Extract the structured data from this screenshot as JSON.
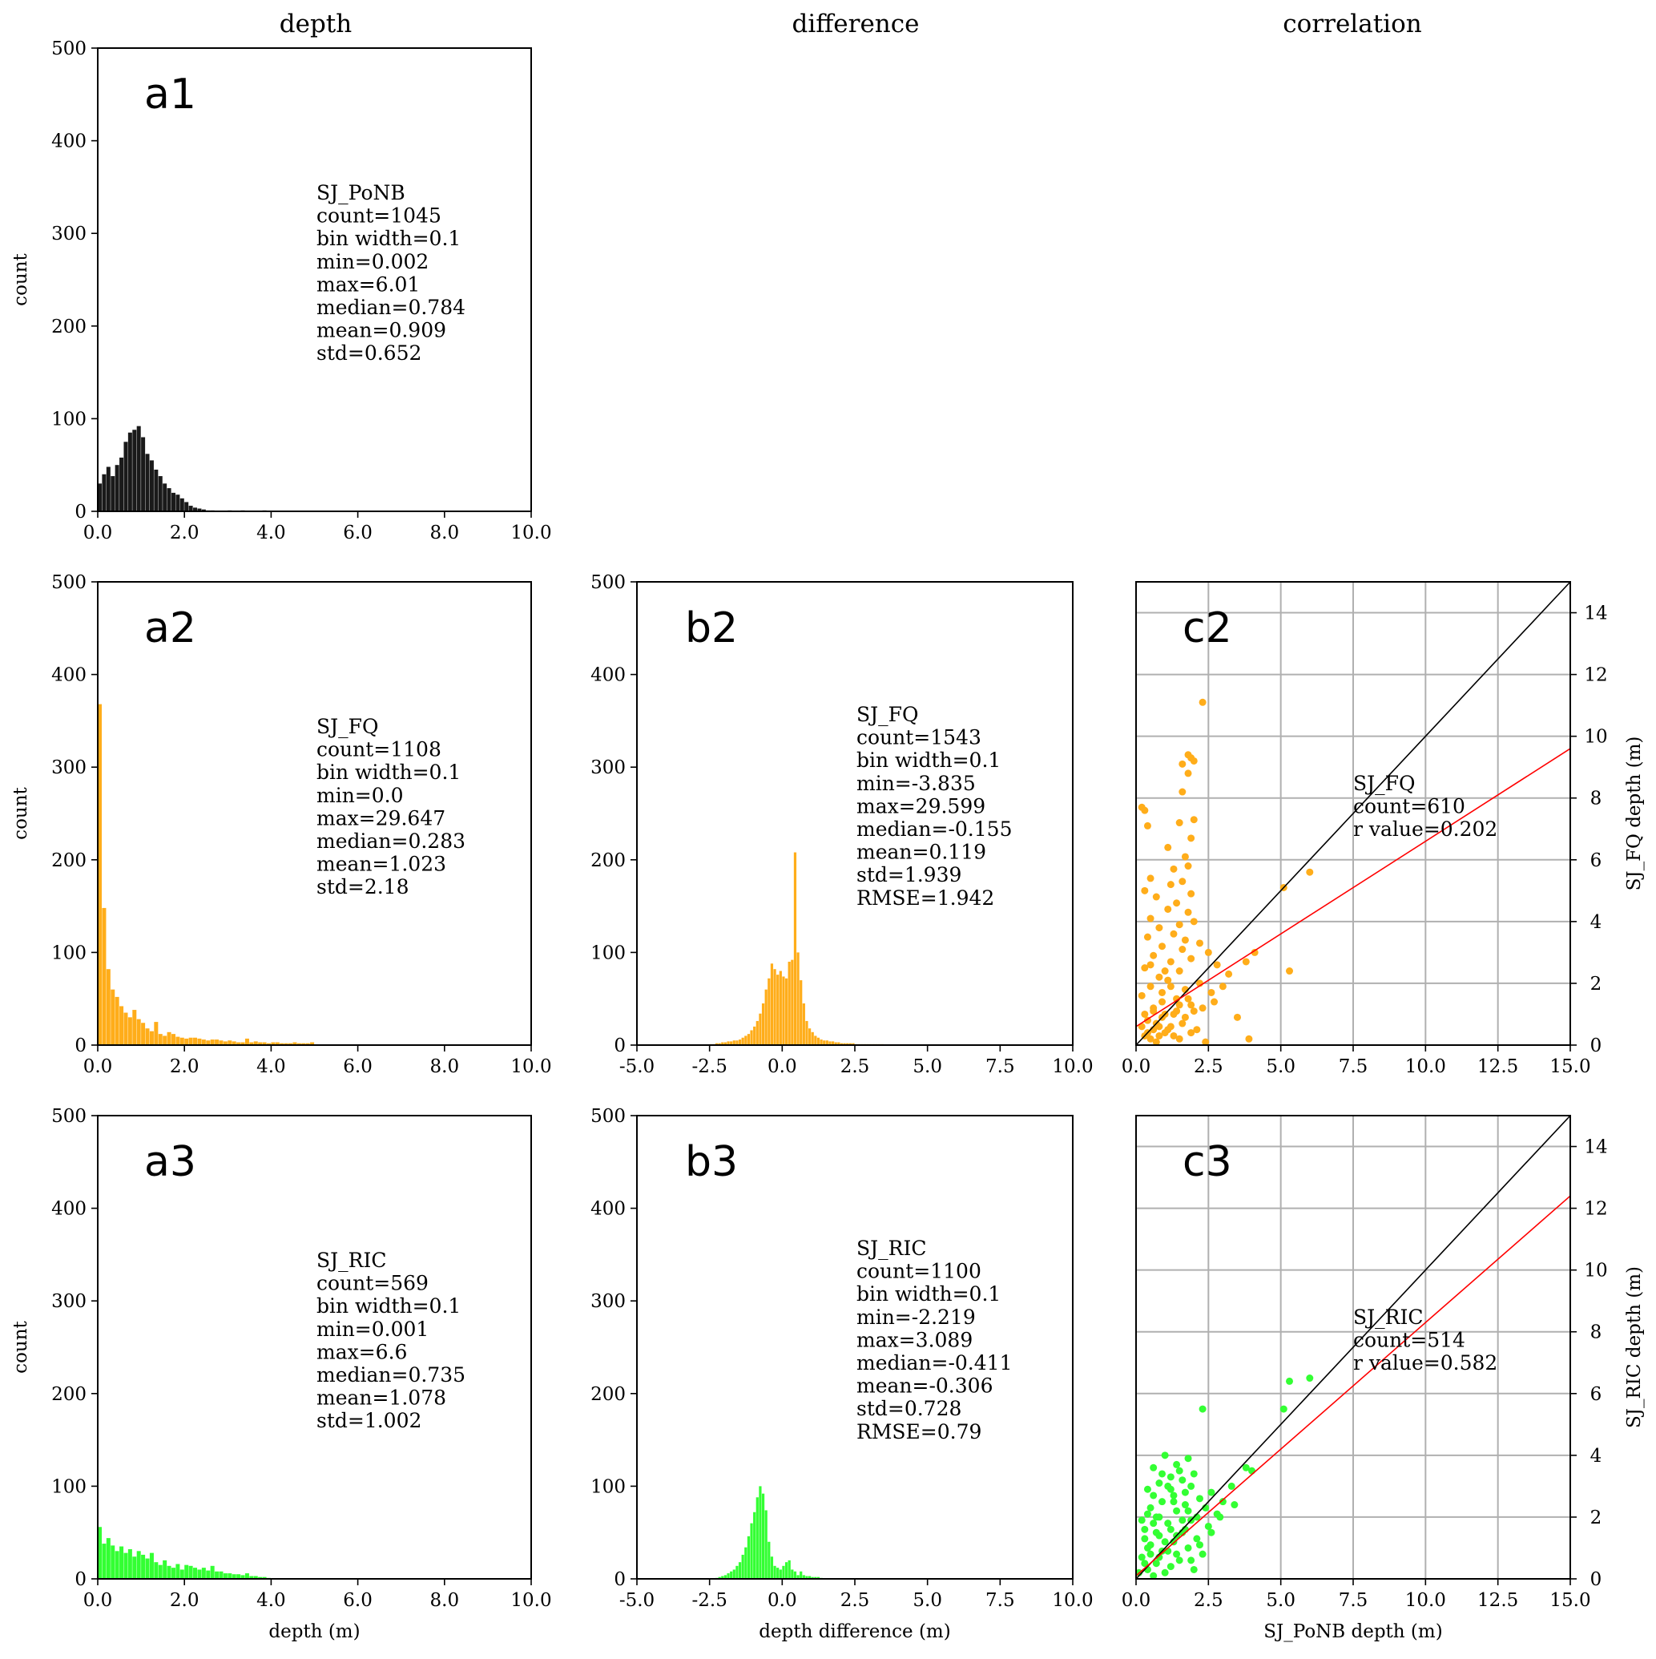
{
  "column_titles": [
    "depth",
    "difference",
    "correlation"
  ],
  "colors": {
    "black": "#1a1a1a",
    "orange": "#ffad1a",
    "green": "#33ff33",
    "red": "#ff0000"
  },
  "chart_data": [
    {
      "id": "a1",
      "type": "bar",
      "panel_label": "a1",
      "color": "#1a1a1a",
      "xlim": [
        0,
        10
      ],
      "ylim": [
        0,
        500
      ],
      "xticks": [
        "0.0",
        "2.0",
        "4.0",
        "6.0",
        "8.0",
        "10.0"
      ],
      "yticks": [
        "0",
        "100",
        "200",
        "300",
        "400",
        "500"
      ],
      "xlabel": "",
      "ylabel": "count",
      "bin_width": 0.1,
      "bin_start": 0,
      "values": [
        30,
        40,
        48,
        38,
        50,
        58,
        75,
        85,
        88,
        92,
        80,
        62,
        55,
        45,
        38,
        30,
        25,
        20,
        18,
        14,
        10,
        6,
        4,
        3,
        2,
        1,
        1,
        0,
        0,
        0,
        1,
        0,
        0,
        1,
        0,
        0,
        0,
        0,
        1
      ],
      "stats": [
        "SJ_PoNB",
        "count=1045",
        "bin width=0.1",
        "min=0.002",
        "max=6.01",
        "median=0.784",
        "mean=0.909",
        "std=0.652"
      ]
    },
    {
      "id": "a2",
      "type": "bar",
      "panel_label": "a2",
      "color": "#ffad1a",
      "xlim": [
        0,
        10
      ],
      "ylim": [
        0,
        500
      ],
      "xticks": [
        "0.0",
        "2.0",
        "4.0",
        "6.0",
        "8.0",
        "10.0"
      ],
      "yticks": [
        "0",
        "100",
        "200",
        "300",
        "400",
        "500"
      ],
      "xlabel": "",
      "ylabel": "count",
      "bin_width": 0.1,
      "bin_start": 0,
      "values": [
        368,
        148,
        82,
        60,
        52,
        42,
        35,
        30,
        38,
        28,
        24,
        18,
        15,
        25,
        12,
        10,
        14,
        12,
        9,
        8,
        7,
        8,
        8,
        7,
        6,
        5,
        6,
        6,
        5,
        4,
        5,
        4,
        3,
        3,
        7,
        3,
        4,
        3,
        3,
        2,
        3,
        3,
        2,
        2,
        2,
        3,
        2,
        2,
        2,
        3
      ],
      "stats": [
        "SJ_FQ",
        "count=1108",
        "bin width=0.1",
        "min=0.0",
        "max=29.647",
        "median=0.283",
        "mean=1.023",
        "std=2.18"
      ]
    },
    {
      "id": "b2",
      "type": "bar",
      "panel_label": "b2",
      "color": "#ffad1a",
      "xlim": [
        -5,
        10
      ],
      "ylim": [
        0,
        500
      ],
      "xticks": [
        "-5.0",
        "-2.5",
        "0.0",
        "2.5",
        "5.0",
        "7.5",
        "10.0"
      ],
      "yticks": [
        "0",
        "100",
        "200",
        "300",
        "400",
        "500"
      ],
      "xlabel": "",
      "ylabel": "",
      "bin_width": 0.1,
      "bin_start": -2.5,
      "values": [
        1,
        1,
        2,
        2,
        3,
        3,
        4,
        4,
        5,
        5,
        6,
        8,
        10,
        12,
        16,
        20,
        26,
        34,
        45,
        60,
        72,
        88,
        82,
        76,
        80,
        74,
        72,
        90,
        92,
        208,
        100,
        70,
        45,
        26,
        18,
        14,
        10,
        8,
        6,
        5,
        5,
        4,
        4,
        3,
        3,
        2,
        2,
        2,
        2,
        2,
        1,
        1,
        1,
        1,
        1,
        1,
        1,
        1,
        1,
        1
      ],
      "stats": [
        "SJ_FQ",
        "count=1543",
        "bin width=0.1",
        "min=-3.835",
        "max=29.599",
        "median=-0.155",
        "mean=0.119",
        "std=1.939",
        "RMSE=1.942"
      ]
    },
    {
      "id": "a3",
      "type": "bar",
      "panel_label": "a3",
      "color": "#33ff33",
      "xlim": [
        0,
        10
      ],
      "ylim": [
        0,
        500
      ],
      "xticks": [
        "0.0",
        "2.0",
        "4.0",
        "6.0",
        "8.0",
        "10.0"
      ],
      "yticks": [
        "0",
        "100",
        "200",
        "300",
        "400",
        "500"
      ],
      "xlabel": "depth (m)",
      "ylabel": "count",
      "bin_width": 0.1,
      "bin_start": 0,
      "values": [
        56,
        38,
        44,
        36,
        30,
        35,
        28,
        32,
        24,
        30,
        26,
        22,
        28,
        18,
        15,
        20,
        14,
        12,
        16,
        10,
        15,
        14,
        12,
        10,
        12,
        9,
        14,
        8,
        8,
        6,
        6,
        5,
        5,
        4,
        6,
        3,
        3,
        2,
        2,
        1
      ],
      "stats": [
        "SJ_RIC",
        "count=569",
        "bin width=0.1",
        "min=0.001",
        "max=6.6",
        "median=0.735",
        "mean=1.078",
        "std=1.002"
      ]
    },
    {
      "id": "b3",
      "type": "bar",
      "panel_label": "b3",
      "color": "#33ff33",
      "xlim": [
        -5,
        10
      ],
      "ylim": [
        0,
        500
      ],
      "xticks": [
        "-5.0",
        "-2.5",
        "0.0",
        "2.5",
        "5.0",
        "7.5",
        "10.0"
      ],
      "yticks": [
        "0",
        "100",
        "200",
        "300",
        "400",
        "500"
      ],
      "xlabel": "depth difference (m)",
      "ylabel": "",
      "bin_width": 0.1,
      "bin_start": -2.3,
      "values": [
        1,
        2,
        3,
        4,
        6,
        8,
        10,
        14,
        18,
        26,
        34,
        46,
        60,
        72,
        88,
        100,
        92,
        74,
        40,
        24,
        14,
        12,
        10,
        14,
        18,
        20,
        10,
        8,
        4,
        8,
        4,
        3,
        3,
        2,
        2,
        2,
        1
      ],
      "stats": [
        "SJ_RIC",
        "count=1100",
        "bin width=0.1",
        "min=-2.219",
        "max=3.089",
        "median=-0.411",
        "mean=-0.306",
        "std=0.728",
        "RMSE=0.79"
      ]
    },
    {
      "id": "c2",
      "type": "scatter",
      "panel_label": "c2",
      "color": "#ffad1a",
      "xlim": [
        0,
        15
      ],
      "ylim": [
        0,
        15
      ],
      "xticks": [
        "0.0",
        "2.5",
        "5.0",
        "7.5",
        "10.0",
        "12.5",
        "15.0"
      ],
      "yticks": [
        "0",
        "2",
        "4",
        "6",
        "8",
        "10",
        "12",
        "14"
      ],
      "xlabel": "",
      "ylabel": "SJ_FQ depth (m)",
      "fit": {
        "slope": 0.6,
        "intercept": 0.6
      },
      "points": [
        [
          2.3,
          11.1
        ],
        [
          1.8,
          9.4
        ],
        [
          1.9,
          9.3
        ],
        [
          1.6,
          9.1
        ],
        [
          1.8,
          8.8
        ],
        [
          2.0,
          9.2
        ],
        [
          0.2,
          7.7
        ],
        [
          0.3,
          7.6
        ],
        [
          1.6,
          8.2
        ],
        [
          2.0,
          7.3
        ],
        [
          1.5,
          7.2
        ],
        [
          0.4,
          7.1
        ],
        [
          1.9,
          6.7
        ],
        [
          1.1,
          6.4
        ],
        [
          1.7,
          6.1
        ],
        [
          1.8,
          5.8
        ],
        [
          1.3,
          5.7
        ],
        [
          0.5,
          5.4
        ],
        [
          1.6,
          5.3
        ],
        [
          1.2,
          5.2
        ],
        [
          0.3,
          5.0
        ],
        [
          1.9,
          4.9
        ],
        [
          0.7,
          4.8
        ],
        [
          1.4,
          4.6
        ],
        [
          1.1,
          4.4
        ],
        [
          1.8,
          4.3
        ],
        [
          0.5,
          4.1
        ],
        [
          2.0,
          4.0
        ],
        [
          1.5,
          3.9
        ],
        [
          0.8,
          3.8
        ],
        [
          1.3,
          3.6
        ],
        [
          0.4,
          3.5
        ],
        [
          1.7,
          3.4
        ],
        [
          2.2,
          3.3
        ],
        [
          0.9,
          3.2
        ],
        [
          1.6,
          3.1
        ],
        [
          2.5,
          3.0
        ],
        [
          0.6,
          2.9
        ],
        [
          1.9,
          2.8
        ],
        [
          1.2,
          2.7
        ],
        [
          2.8,
          2.6
        ],
        [
          0.3,
          2.5
        ],
        [
          1.5,
          2.4
        ],
        [
          3.2,
          2.3
        ],
        [
          0.8,
          2.2
        ],
        [
          1.1,
          2.1
        ],
        [
          2.2,
          2.0
        ],
        [
          0.5,
          1.9
        ],
        [
          1.7,
          1.8
        ],
        [
          2.6,
          1.7
        ],
        [
          0.2,
          1.6
        ],
        [
          1.4,
          1.5
        ],
        [
          0.9,
          1.4
        ],
        [
          1.9,
          1.3
        ],
        [
          2.3,
          1.2
        ],
        [
          0.6,
          1.1
        ],
        [
          1.3,
          1.0
        ],
        [
          3.5,
          0.9
        ],
        [
          0.4,
          0.8
        ],
        [
          1.6,
          0.7
        ],
        [
          0.8,
          0.6
        ],
        [
          2.1,
          0.5
        ],
        [
          1.0,
          0.4
        ],
        [
          0.3,
          0.3
        ],
        [
          1.5,
          0.2
        ],
        [
          0.7,
          0.1
        ],
        [
          2.4,
          0.1
        ],
        [
          3.9,
          0.2
        ],
        [
          5.1,
          5.1
        ],
        [
          6.0,
          5.6
        ],
        [
          5.3,
          2.4
        ],
        [
          3.8,
          2.7
        ],
        [
          4.1,
          3.0
        ],
        [
          0.6,
          1.2
        ],
        [
          0.9,
          0.9
        ],
        [
          1.2,
          0.6
        ],
        [
          0.4,
          0.4
        ],
        [
          0.7,
          0.7
        ],
        [
          1.0,
          1.0
        ],
        [
          1.4,
          1.1
        ],
        [
          0.5,
          0.2
        ],
        [
          0.8,
          0.3
        ],
        [
          1.1,
          0.5
        ],
        [
          0.2,
          0.6
        ],
        [
          1.3,
          0.3
        ],
        [
          1.7,
          0.9
        ],
        [
          0.6,
          0.5
        ],
        [
          1.8,
          1.5
        ],
        [
          2.0,
          1.1
        ],
        [
          0.3,
          1.0
        ],
        [
          1.5,
          1.3
        ],
        [
          1.9,
          0.4
        ],
        [
          0.9,
          1.7
        ],
        [
          1.2,
          1.9
        ],
        [
          2.7,
          1.4
        ],
        [
          3.0,
          1.9
        ],
        [
          0.5,
          2.6
        ],
        [
          1.0,
          2.4
        ]
      ],
      "stats": [
        "SJ_FQ",
        "count=610",
        "r value=0.202"
      ]
    },
    {
      "id": "c3",
      "type": "scatter",
      "panel_label": "c3",
      "color": "#33ff33",
      "xlim": [
        0,
        15
      ],
      "ylim": [
        0,
        15
      ],
      "xticks": [
        "0.0",
        "2.5",
        "5.0",
        "7.5",
        "10.0",
        "12.5",
        "15.0"
      ],
      "yticks": [
        "0",
        "2",
        "4",
        "6",
        "8",
        "10",
        "12",
        "14"
      ],
      "xlabel": "SJ_PoNB depth (m)",
      "ylabel": "SJ_RIC depth (m)",
      "fit": {
        "slope": 0.82,
        "intercept": 0.1
      },
      "points": [
        [
          5.3,
          6.4
        ],
        [
          6.0,
          6.5
        ],
        [
          2.3,
          5.5
        ],
        [
          5.1,
          5.5
        ],
        [
          1.0,
          4.0
        ],
        [
          1.8,
          3.9
        ],
        [
          4.0,
          3.5
        ],
        [
          3.8,
          3.6
        ],
        [
          1.4,
          3.7
        ],
        [
          0.6,
          3.6
        ],
        [
          2.0,
          3.4
        ],
        [
          1.2,
          3.3
        ],
        [
          3.3,
          3.0
        ],
        [
          1.6,
          3.2
        ],
        [
          0.8,
          3.1
        ],
        [
          2.6,
          2.8
        ],
        [
          1.9,
          3.0
        ],
        [
          0.4,
          2.9
        ],
        [
          1.3,
          2.7
        ],
        [
          2.2,
          2.6
        ],
        [
          0.9,
          2.5
        ],
        [
          3.0,
          2.5
        ],
        [
          1.7,
          2.4
        ],
        [
          0.5,
          2.3
        ],
        [
          1.4,
          2.2
        ],
        [
          2.8,
          2.1
        ],
        [
          0.7,
          2.0
        ],
        [
          1.9,
          1.9
        ],
        [
          1.1,
          1.8
        ],
        [
          2.5,
          1.7
        ],
        [
          0.3,
          1.6
        ],
        [
          1.6,
          1.5
        ],
        [
          0.8,
          1.4
        ],
        [
          2.1,
          1.3
        ],
        [
          1.3,
          1.2
        ],
        [
          0.5,
          1.1
        ],
        [
          1.8,
          1.0
        ],
        [
          0.9,
          0.9
        ],
        [
          2.3,
          0.8
        ],
        [
          0.2,
          0.7
        ],
        [
          1.5,
          0.6
        ],
        [
          0.7,
          0.5
        ],
        [
          1.2,
          0.4
        ],
        [
          0.4,
          0.3
        ],
        [
          1.0,
          0.2
        ],
        [
          0.6,
          0.1
        ],
        [
          2.0,
          0.3
        ],
        [
          1.4,
          0.8
        ],
        [
          0.3,
          1.3
        ],
        [
          1.7,
          2.8
        ],
        [
          2.4,
          2.3
        ],
        [
          0.6,
          2.7
        ],
        [
          1.1,
          3.0
        ],
        [
          1.5,
          3.5
        ],
        [
          0.8,
          2.0
        ],
        [
          0.2,
          1.9
        ],
        [
          2.6,
          1.5
        ],
        [
          1.9,
          0.6
        ],
        [
          1.2,
          1.6
        ],
        [
          0.5,
          0.8
        ],
        [
          2.9,
          2.0
        ],
        [
          3.4,
          2.4
        ],
        [
          1.0,
          1.2
        ],
        [
          0.7,
          1.5
        ],
        [
          1.6,
          1.9
        ],
        [
          2.2,
          1.1
        ],
        [
          0.4,
          2.1
        ],
        [
          1.3,
          2.5
        ],
        [
          1.8,
          2.2
        ],
        [
          0.9,
          3.4
        ],
        [
          0.3,
          0.5
        ],
        [
          0.1,
          0.2
        ],
        [
          0.8,
          0.7
        ],
        [
          1.1,
          0.9
        ],
        [
          1.4,
          1.4
        ],
        [
          1.7,
          1.6
        ],
        [
          0.6,
          1.8
        ],
        [
          2.1,
          2.0
        ],
        [
          0.4,
          1.0
        ],
        [
          1.2,
          2.9
        ]
      ],
      "stats": [
        "SJ_RIC",
        "count=514",
        "r value=0.582"
      ]
    }
  ]
}
